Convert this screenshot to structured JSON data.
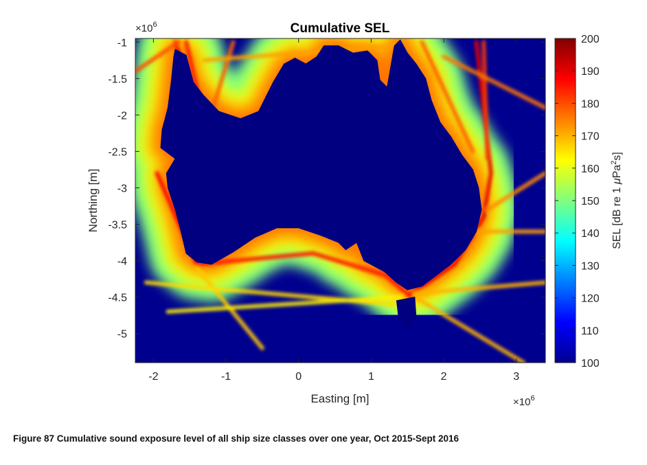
{
  "chart_data": {
    "type": "heatmap",
    "title": "Cumulative SEL",
    "xlabel": "Easting [m]",
    "ylabel": "Northing [m]",
    "x_multiplier_label": "×10",
    "x_multiplier_exp": "6",
    "y_multiplier_label": "×10",
    "y_multiplier_exp": "6",
    "xlim": [
      -2.25,
      3.4
    ],
    "ylim": [
      -5.4,
      -0.95
    ],
    "x_ticks": [
      -2,
      -1,
      0,
      1,
      2,
      3
    ],
    "x_tick_labels": [
      "-2",
      "-1",
      "0",
      "1",
      "2",
      "3"
    ],
    "y_ticks": [
      -1,
      -1.5,
      -2,
      -2.5,
      -3,
      -3.5,
      -4,
      -4.5,
      -5
    ],
    "y_tick_labels": [
      "-1",
      "-1.5",
      "-2",
      "-2.5",
      "-3",
      "-3.5",
      "-4",
      "-4.5",
      "-5"
    ],
    "colorbar": {
      "label_parts": [
        "SEL [dB re 1 ",
        "μ",
        "Pa",
        "2",
        "s]"
      ],
      "range": [
        100,
        200
      ],
      "ticks": [
        100,
        110,
        120,
        130,
        140,
        150,
        160,
        170,
        180,
        190,
        200
      ],
      "tick_labels": [
        "100",
        "110",
        "120",
        "130",
        "140",
        "150",
        "160",
        "170",
        "180",
        "190",
        "200"
      ],
      "colormap": "jet"
    },
    "land_value": 100,
    "coastline": [
      [
        -1.7,
        -1.1
      ],
      [
        -1.55,
        -1.18
      ],
      [
        -1.45,
        -1.55
      ],
      [
        -1.32,
        -1.72
      ],
      [
        -1.1,
        -1.95
      ],
      [
        -0.8,
        -2.05
      ],
      [
        -0.55,
        -1.95
      ],
      [
        -0.35,
        -1.55
      ],
      [
        -0.2,
        -1.3
      ],
      [
        -0.05,
        -1.22
      ],
      [
        0.1,
        -1.3
      ],
      [
        0.25,
        -1.2
      ],
      [
        0.35,
        -1.05
      ],
      [
        0.55,
        -1.05
      ],
      [
        0.75,
        -1.15
      ],
      [
        0.95,
        -1.12
      ],
      [
        1.08,
        -1.25
      ],
      [
        1.12,
        -1.52
      ],
      [
        1.22,
        -1.62
      ],
      [
        1.32,
        -1.05
      ],
      [
        1.4,
        -0.97
      ],
      [
        1.5,
        -1.15
      ],
      [
        1.62,
        -1.3
      ],
      [
        1.75,
        -1.5
      ],
      [
        1.83,
        -1.8
      ],
      [
        1.95,
        -2.1
      ],
      [
        2.1,
        -2.3
      ],
      [
        2.25,
        -2.55
      ],
      [
        2.4,
        -2.75
      ],
      [
        2.48,
        -3.0
      ],
      [
        2.52,
        -3.3
      ],
      [
        2.45,
        -3.6
      ],
      [
        2.3,
        -3.85
      ],
      [
        2.1,
        -4.05
      ],
      [
        1.9,
        -4.2
      ],
      [
        1.7,
        -4.35
      ],
      [
        1.5,
        -4.4
      ],
      [
        1.35,
        -4.3
      ],
      [
        1.18,
        -4.15
      ],
      [
        0.9,
        -4.0
      ],
      [
        0.8,
        -3.75
      ],
      [
        0.65,
        -3.85
      ],
      [
        0.55,
        -3.75
      ],
      [
        0.3,
        -3.65
      ],
      [
        0.0,
        -3.55
      ],
      [
        -0.3,
        -3.55
      ],
      [
        -0.6,
        -3.68
      ],
      [
        -0.9,
        -3.88
      ],
      [
        -1.2,
        -4.05
      ],
      [
        -1.4,
        -4.02
      ],
      [
        -1.55,
        -3.9
      ],
      [
        -1.62,
        -3.6
      ],
      [
        -1.7,
        -3.3
      ],
      [
        -1.8,
        -3.0
      ],
      [
        -1.82,
        -2.8
      ],
      [
        -1.7,
        -2.6
      ],
      [
        -1.9,
        -2.45
      ],
      [
        -1.88,
        -2.2
      ],
      [
        -1.8,
        -1.9
      ],
      [
        -1.75,
        -1.5
      ],
      [
        -1.72,
        -1.2
      ]
    ],
    "tasmania": [
      [
        1.35,
        -4.55
      ],
      [
        1.6,
        -4.5
      ],
      [
        1.62,
        -4.78
      ],
      [
        1.48,
        -4.95
      ],
      [
        1.38,
        -4.8
      ]
    ],
    "shipping_lanes": [
      {
        "sel": 190,
        "path": [
          [
            -1.7,
            -1.0
          ],
          [
            -1.3,
            -2.3
          ]
        ]
      },
      {
        "sel": 185,
        "path": [
          [
            -1.55,
            -1.0
          ],
          [
            -1.25,
            -2.3
          ]
        ]
      },
      {
        "sel": 180,
        "path": [
          [
            -2.25,
            -1.4
          ],
          [
            -1.65,
            -1.0
          ]
        ]
      },
      {
        "sel": 178,
        "path": [
          [
            -1.3,
            -2.3
          ],
          [
            -0.9,
            -1.0
          ]
        ]
      },
      {
        "sel": 188,
        "path": [
          [
            -1.95,
            -2.8
          ],
          [
            -1.4,
            -4.05
          ]
        ]
      },
      {
        "sel": 186,
        "path": [
          [
            -1.4,
            -4.05
          ],
          [
            0.2,
            -3.9
          ],
          [
            1.2,
            -4.2
          ],
          [
            1.55,
            -4.5
          ]
        ]
      },
      {
        "sel": 190,
        "path": [
          [
            1.55,
            -4.45
          ],
          [
            2.15,
            -4.05
          ],
          [
            2.55,
            -3.4
          ],
          [
            2.65,
            -2.8
          ],
          [
            2.45,
            -1.0
          ]
        ]
      },
      {
        "sel": 182,
        "path": [
          [
            2.55,
            -1.0
          ],
          [
            2.6,
            -2.6
          ]
        ]
      },
      {
        "sel": 178,
        "path": [
          [
            1.7,
            -1.0
          ],
          [
            2.4,
            -2.5
          ]
        ]
      },
      {
        "sel": 176,
        "path": [
          [
            2.0,
            -1.2
          ],
          [
            3.4,
            -1.9
          ]
        ]
      },
      {
        "sel": 174,
        "path": [
          [
            2.6,
            -3.3
          ],
          [
            3.4,
            -2.8
          ]
        ]
      },
      {
        "sel": 172,
        "path": [
          [
            2.4,
            -3.6
          ],
          [
            3.4,
            -3.6
          ]
        ]
      },
      {
        "sel": 170,
        "path": [
          [
            1.6,
            -4.5
          ],
          [
            3.1,
            -5.4
          ]
        ]
      },
      {
        "sel": 170,
        "path": [
          [
            1.6,
            -4.45
          ],
          [
            3.4,
            -4.3
          ]
        ]
      },
      {
        "sel": 172,
        "path": [
          [
            -1.3,
            -1.25
          ],
          [
            1.35,
            -1.05
          ]
        ]
      },
      {
        "sel": 168,
        "path": [
          [
            -1.4,
            -4.1
          ],
          [
            -0.5,
            -5.2
          ]
        ]
      },
      {
        "sel": 166,
        "path": [
          [
            -2.1,
            -4.3
          ],
          [
            1.3,
            -4.6
          ]
        ]
      },
      {
        "sel": 164,
        "path": [
          [
            -1.8,
            -4.7
          ],
          [
            1.4,
            -4.5
          ]
        ]
      }
    ]
  },
  "caption": "Figure 87 Cumulative sound exposure level of all ship size classes over one year, Oct 2015-Sept 2016"
}
